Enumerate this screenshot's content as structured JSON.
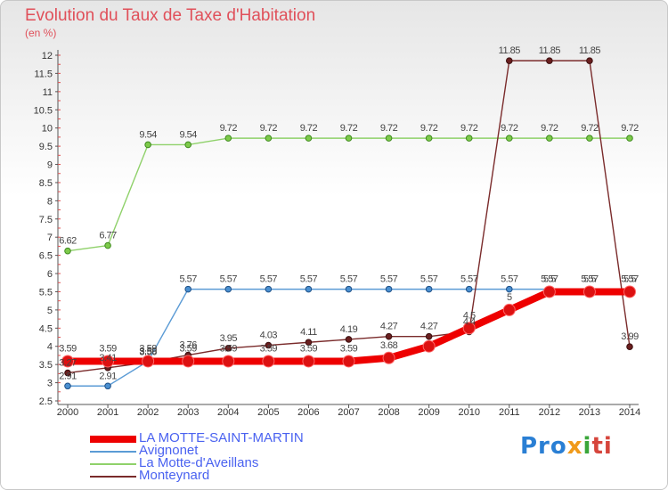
{
  "title": "Evolution du Taux de Taxe d'Habitation",
  "subtitle": "(en %)",
  "logo": {
    "part1": "Pro",
    "part2": "x",
    "part3": "i",
    "part4": "ti"
  },
  "chart_data": {
    "type": "line",
    "x": [
      "2000",
      "2001",
      "2002",
      "2003",
      "2004",
      "2005",
      "2006",
      "2007",
      "2008",
      "2009",
      "2010",
      "2011",
      "2012",
      "2013",
      "2014"
    ],
    "ylim": [
      2.5,
      12
    ],
    "yticks": [
      "2.5",
      "3",
      "3.5",
      "4",
      "4.5",
      "5",
      "5.5",
      "6",
      "6.5",
      "7",
      "7.5",
      "8",
      "8.5",
      "9",
      "9.5",
      "10",
      "10.5",
      "11",
      "11.5",
      "12"
    ],
    "grid": false,
    "legend_position": "bottom-left",
    "series": [
      {
        "name": "LA MOTTE-SAINT-MARTIN",
        "color": "#ee0000",
        "values": [
          3.59,
          3.59,
          3.59,
          3.59,
          3.59,
          3.59,
          3.59,
          3.59,
          3.68,
          4.0,
          4.5,
          5.0,
          5.5,
          5.5,
          5.5
        ],
        "labels": [
          "3.59",
          "3.59",
          "3.59",
          "3.59",
          "3.59",
          "3.59",
          "3.59",
          "3.59",
          "3.68",
          "",
          "4.5",
          "5",
          "5.5",
          "5.5",
          "5.5"
        ]
      },
      {
        "name": "Avignonet",
        "color": "#5b9bd5",
        "values": [
          2.91,
          2.91,
          3.59,
          5.57,
          5.57,
          5.57,
          5.57,
          5.57,
          5.57,
          5.57,
          5.57,
          5.57,
          5.57,
          5.57,
          5.57
        ],
        "labels": [
          "2.91",
          "2.91",
          "3.59",
          "5.57",
          "5.57",
          "5.57",
          "5.57",
          "5.57",
          "5.57",
          "5.57",
          "5.57",
          "5.57",
          "5.57",
          "5.57",
          "5.57"
        ]
      },
      {
        "name": "La Motte-d'Aveillans",
        "color": "#8fd16a",
        "values": [
          6.62,
          6.77,
          9.54,
          9.54,
          9.72,
          9.72,
          9.72,
          9.72,
          9.72,
          9.72,
          9.72,
          9.72,
          9.72,
          9.72,
          9.72
        ],
        "labels": [
          "6.62",
          "6.77",
          "9.54",
          "9.54",
          "9.72",
          "9.72",
          "9.72",
          "9.72",
          "9.72",
          "9.72",
          "9.72",
          "9.72",
          "9.72",
          "9.72",
          "9.72"
        ]
      },
      {
        "name": "Monteynard",
        "color": "#7a2b2b",
        "values": [
          3.27,
          3.41,
          3.56,
          3.76,
          3.95,
          4.03,
          4.11,
          4.19,
          4.27,
          4.27,
          4.4,
          11.85,
          11.85,
          11.85,
          3.99
        ],
        "labels": [
          "3.27",
          "3.41",
          "3.56",
          "3.76",
          "3.95",
          "4.03",
          "4.11",
          "4.19",
          "4.27",
          "4.27",
          "4.4",
          "11.85",
          "11.85",
          "11.85",
          "3.99"
        ]
      }
    ]
  }
}
